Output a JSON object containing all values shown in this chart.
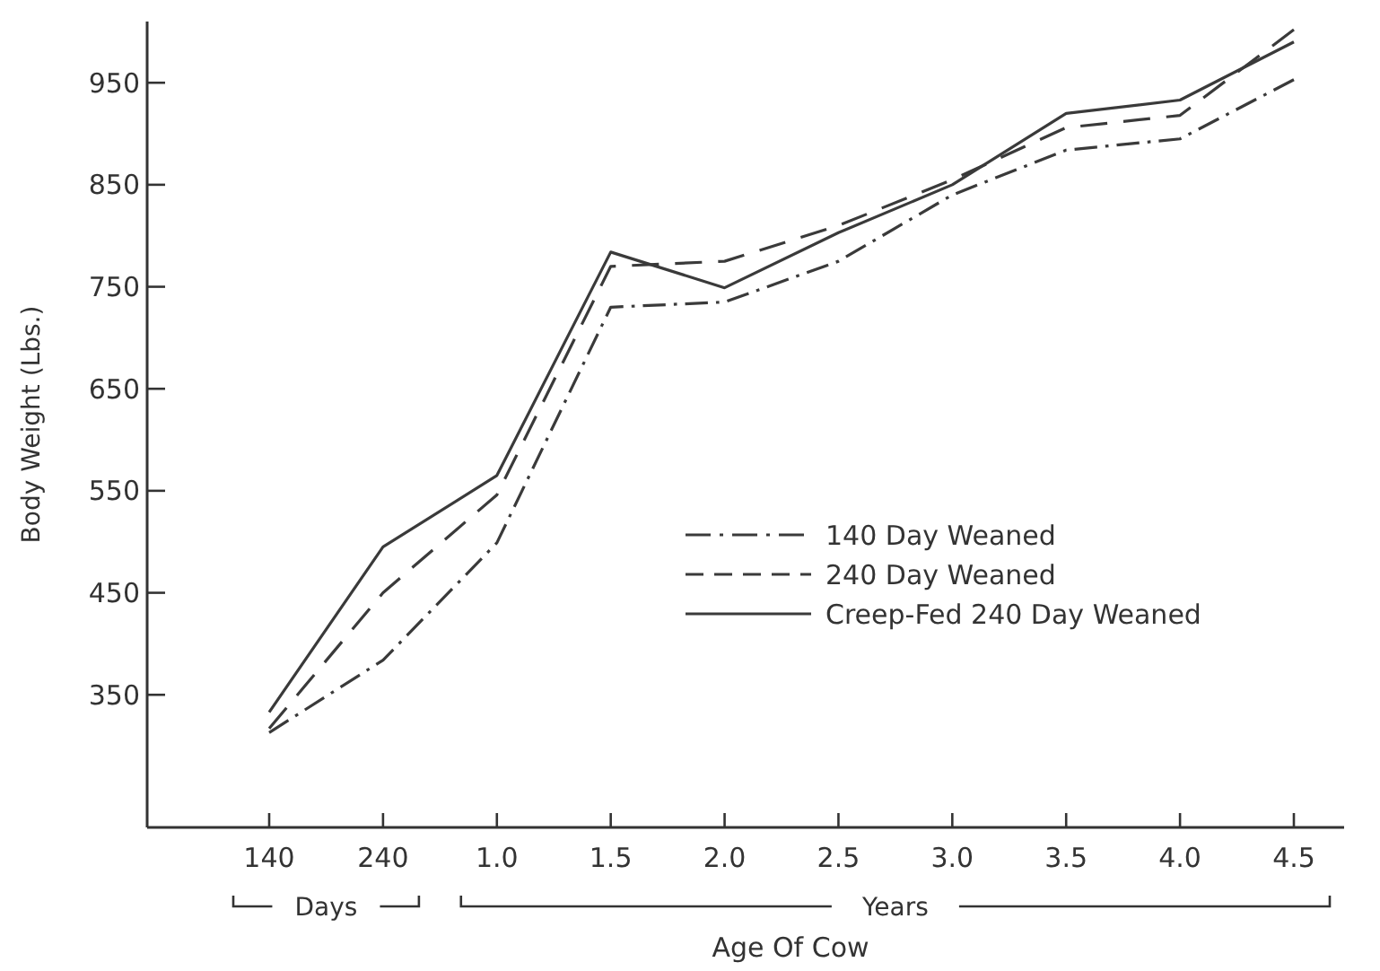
{
  "chart_data": {
    "type": "line",
    "xlabel": "Age Of Cow",
    "ylabel": "Body Weight (Lbs.)",
    "categories": [
      "140",
      "240",
      "1.0",
      "1.5",
      "2.0",
      "2.5",
      "3.0",
      "3.5",
      "4.0",
      "4.5"
    ],
    "series": [
      {
        "name": "140 Day Weaned",
        "color": "#3a3a3a",
        "line_style": "dashdot",
        "values": [
          313,
          384,
          499,
          730,
          735,
          775,
          840,
          884,
          895,
          953
        ]
      },
      {
        "name": "240 Day Weaned",
        "color": "#3a3a3a",
        "line_style": "dashed",
        "values": [
          317,
          450,
          546,
          770,
          775,
          810,
          855,
          906,
          918,
          1002
        ]
      },
      {
        "name": "Creep-Fed 240 Day Weaned",
        "color": "#3a3a3a",
        "line_style": "solid",
        "values": [
          333,
          495,
          565,
          784,
          749,
          803,
          850,
          920,
          933,
          990
        ]
      }
    ],
    "annotations": [
      "Days",
      "Years"
    ],
    "ylim": [
      220,
      1010
    ],
    "yticks": [
      350,
      450,
      550,
      650,
      750,
      850,
      950
    ],
    "grid": false,
    "legend": "right",
    "marker": "none"
  }
}
